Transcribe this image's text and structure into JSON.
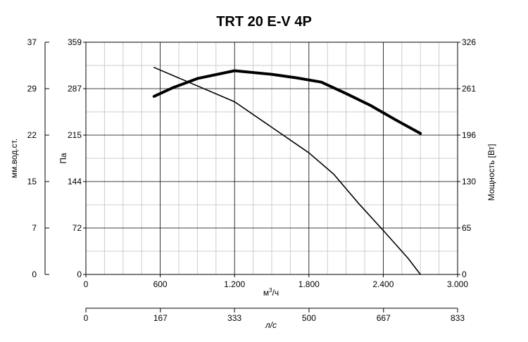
{
  "chart_data": {
    "type": "line",
    "title": "TRT 20 E-V 4P",
    "xlabel": "м³/ч",
    "xlabel_base": "м",
    "xlabel_sup": "3",
    "xlabel_tail": "/ч",
    "xlim": [
      0,
      3000
    ],
    "x_ticks": [
      "0",
      "600",
      "1.200",
      "1.800",
      "2.400",
      "3.000"
    ],
    "x_tick_values": [
      0,
      600,
      1200,
      1800,
      2400,
      3000
    ],
    "x2label": "л/с",
    "x2lim": [
      0,
      833
    ],
    "x2_ticks": [
      "0",
      "167",
      "333",
      "500",
      "667",
      "833"
    ],
    "x2_tick_values": [
      0,
      167,
      333,
      500,
      667,
      833
    ],
    "ylabel": "Па",
    "ylim": [
      0,
      359
    ],
    "y_ticks": [
      "0",
      "72",
      "144",
      "215",
      "287",
      "359"
    ],
    "y_tick_values": [
      0,
      72,
      144,
      215,
      287,
      359
    ],
    "y2label": "мм.вод.ст.",
    "y2lim": [
      0,
      37
    ],
    "y2_ticks": [
      "0",
      "7",
      "15",
      "22",
      "29",
      "37"
    ],
    "y2_tick_values": [
      0,
      7,
      15,
      22,
      29,
      37
    ],
    "y3label": "Мощность [Вт]",
    "y3lim": [
      0,
      326
    ],
    "y3_ticks": [
      "0",
      "65",
      "130",
      "196",
      "261",
      "326"
    ],
    "y3_tick_values": [
      0,
      65,
      130,
      196,
      261,
      326
    ],
    "grid": true,
    "series": [
      {
        "axis": "pressure",
        "x": [
          550,
          1200,
          1800,
          2000,
          2200,
          2400,
          2600,
          2700
        ],
        "y": [
          320,
          267,
          188,
          155,
          110,
          68,
          25,
          0
        ]
      },
      {
        "axis": "power",
        "x": [
          550,
          700,
          900,
          1200,
          1500,
          1700,
          1900,
          2100,
          2300,
          2500,
          2700
        ],
        "y": [
          250,
          262,
          275,
          286,
          281,
          276,
          270,
          254,
          237,
          217,
          198
        ]
      }
    ]
  }
}
